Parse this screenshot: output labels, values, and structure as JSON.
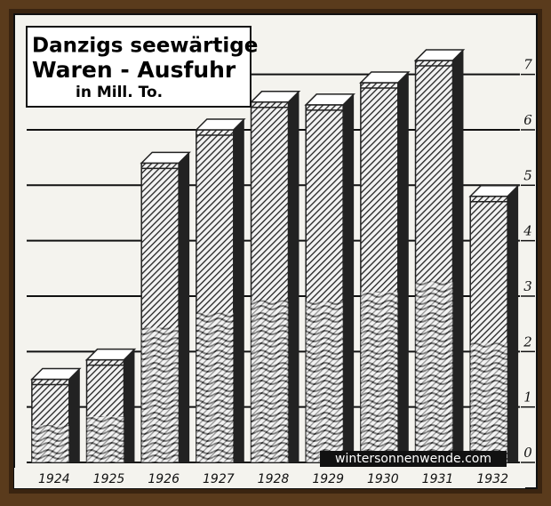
{
  "chart_data": {
    "type": "bar",
    "title": [
      "Danzigs seewärtige",
      "Waren - Ausfuhr"
    ],
    "subtitle": "in Mill. To.",
    "watermark": "wintersonnenwende.com",
    "categories": [
      "1924",
      "1925",
      "1926",
      "1927",
      "1928",
      "1929",
      "1930",
      "1931",
      "1932"
    ],
    "values": [
      1.5,
      1.85,
      5.4,
      6.0,
      6.5,
      6.45,
      6.85,
      7.25,
      4.8
    ],
    "color": "#222222",
    "ylim": [
      0,
      7.7
    ],
    "yticks": [
      0,
      1,
      2,
      3,
      4,
      5,
      6,
      7
    ],
    "grid": true
  }
}
